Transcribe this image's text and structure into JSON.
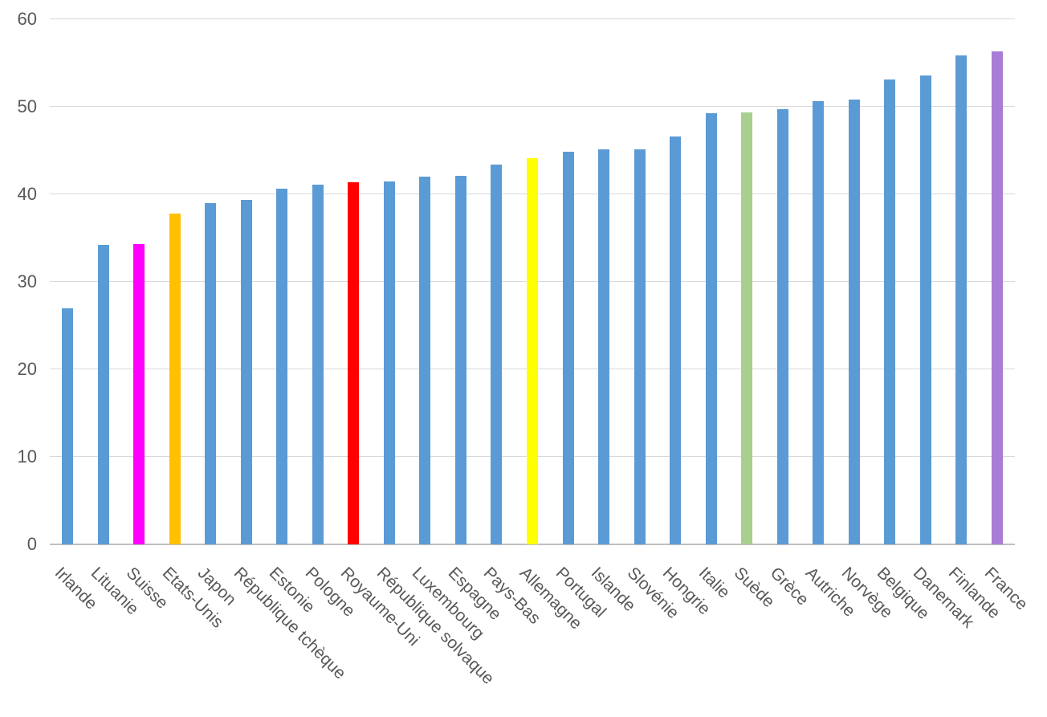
{
  "chart_data": {
    "type": "bar",
    "title": "",
    "xlabel": "",
    "ylabel": "",
    "categories": [
      "Irlande",
      "Lituanie",
      "Suisse",
      "Etats-Unis",
      "Japon",
      "République tchèque",
      "Estonie",
      "Pologne",
      "Royaume-Uni",
      "République solvaque",
      "Luxembourg",
      "Espagne",
      "Pays-Bas",
      "Allemagne",
      "Portugal",
      "Islande",
      "Slovénie",
      "Hongrie",
      "Italie",
      "Suède",
      "Grèce",
      "Autriche",
      "Norvège",
      "Belgique",
      "Danemark",
      "Finlande",
      "France"
    ],
    "values": [
      27.0,
      34.2,
      34.3,
      37.8,
      39.0,
      39.4,
      40.6,
      41.1,
      41.4,
      41.5,
      42.0,
      42.1,
      43.4,
      44.1,
      44.9,
      45.1,
      45.1,
      46.6,
      49.3,
      49.4,
      49.7,
      50.6,
      50.8,
      53.1,
      53.6,
      55.9,
      56.3
    ],
    "bar_colors": [
      "#5B9BD5",
      "#5B9BD5",
      "#FF00FF",
      "#FFC000",
      "#5B9BD5",
      "#5B9BD5",
      "#5B9BD5",
      "#5B9BD5",
      "#FF0000",
      "#5B9BD5",
      "#5B9BD5",
      "#5B9BD5",
      "#5B9BD5",
      "#FFFF00",
      "#5B9BD5",
      "#5B9BD5",
      "#5B9BD5",
      "#5B9BD5",
      "#5B9BD5",
      "#A8CF8E",
      "#5B9BD5",
      "#5B9BD5",
      "#5B9BD5",
      "#5B9BD5",
      "#5B9BD5",
      "#5B9BD5",
      "#A87DD6"
    ],
    "highlighted_bars": {
      "Suisse": "#FF00FF",
      "Etats-Unis": "#FFC000",
      "Royaume-Uni": "#FF0000",
      "Allemagne": "#FFFF00",
      "Suède": "#A8CF8E",
      "France": "#A87DD6"
    },
    "y_ticks": [
      0,
      10,
      20,
      30,
      40,
      50,
      60
    ],
    "ylim": [
      0,
      60
    ],
    "grid": true,
    "legend": "none",
    "x_label_rotation_deg": 45
  },
  "colors": {
    "default_bar": "#5B9BD5",
    "gridline": "#D9D9D9",
    "axis_line": "#BFBFBF",
    "label_text": "#595959",
    "background": "#FFFFFF"
  }
}
